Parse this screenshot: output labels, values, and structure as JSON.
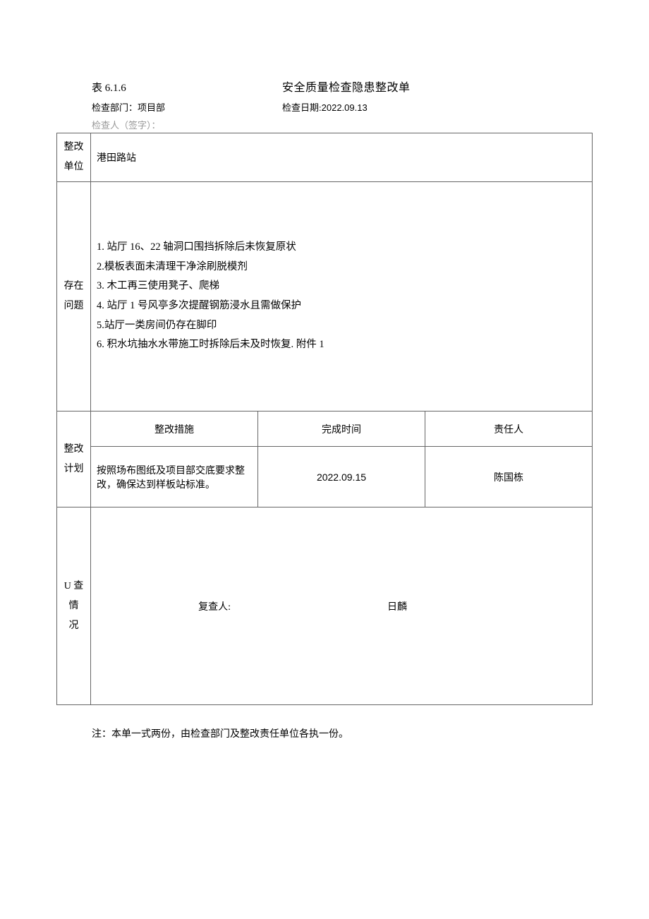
{
  "header": {
    "table_number": "表 6.1.6",
    "title": "安全质量检查隐患整改单",
    "dept_label": "检查部门：",
    "dept_value": "项目部",
    "date_label": "检查日期:",
    "date_value": "2022.09.13",
    "inspector_label": "检查人（签字）："
  },
  "rows": {
    "unit_label": "整改单位",
    "unit_value": "港田路站",
    "problems_label": "存在问题",
    "problems": [
      "1. 站厅 16、22 轴洞口围挡拆除后未恢复原状",
      "2.模板表面未清理干净涂刷脱模剂",
      "3. 木工再三使用凳子、爬梯",
      "4. 站厅 1 号风亭多次提醒钢筋浸水且需做保护",
      "5.站厅一类房间仍存在脚印",
      "6. 积水坑抽水水带施工时拆除后未及时恢复. 附件 1"
    ],
    "plan_label": "整改计划",
    "plan_headers": {
      "measure": "整改措施",
      "time": "完成时间",
      "person": "责任人"
    },
    "plan_body": {
      "measure": "按照场布图纸及项目部交底要求整改，确保达到样板站标准。",
      "time": "2022.09.15",
      "person": "陈国栋"
    },
    "review_label": "U 查情 况",
    "review_reviewer_label": "复查人:",
    "review_date_label": "日麟"
  },
  "footnote": "注：本单一式两份，由检查部门及整改责任单位各执一份。"
}
